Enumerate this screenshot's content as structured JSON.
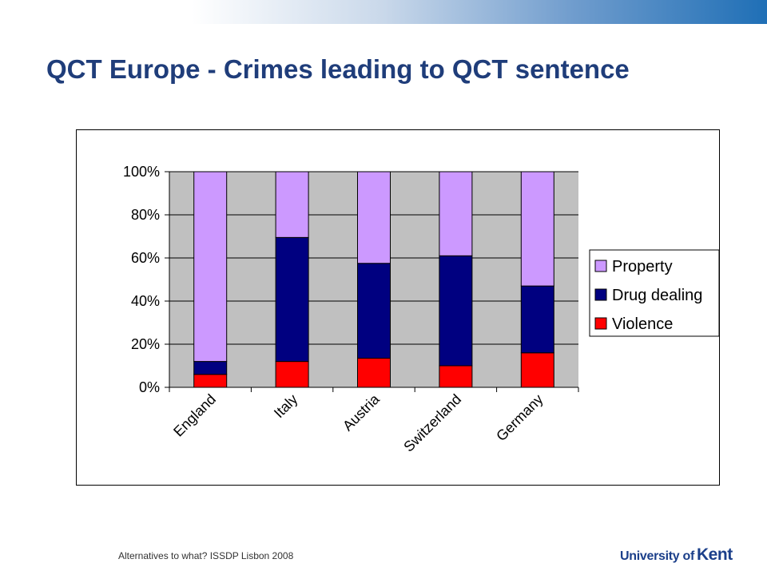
{
  "slide": {
    "title": "QCT Europe - Crimes leading to QCT sentence",
    "footer": "Alternatives to what? ISSDP Lisbon 2008",
    "logo_text_1": "University of",
    "logo_text_2": "Kent"
  },
  "chart_data": {
    "type": "bar",
    "stacked": true,
    "percent": true,
    "categories": [
      "England",
      "Italy",
      "Austria",
      "Switzerland",
      "Germany"
    ],
    "series": [
      {
        "name": "Violence",
        "color": "#ff0000",
        "values": [
          6,
          12,
          13.5,
          10,
          16
        ]
      },
      {
        "name": "Drug dealing",
        "color": "#000080",
        "values": [
          6,
          57.5,
          44,
          51,
          31
        ]
      },
      {
        "name": "Property",
        "color": "#cc99ff",
        "values": [
          88,
          30.5,
          42.5,
          39,
          53
        ]
      }
    ],
    "ylim": [
      0,
      100
    ],
    "yticks": [
      "0%",
      "20%",
      "40%",
      "60%",
      "80%",
      "100%"
    ],
    "grid": true,
    "plot_background": "#c0c0c0",
    "legend_position": "right",
    "legend_order": [
      "Property",
      "Drug dealing",
      "Violence"
    ]
  }
}
